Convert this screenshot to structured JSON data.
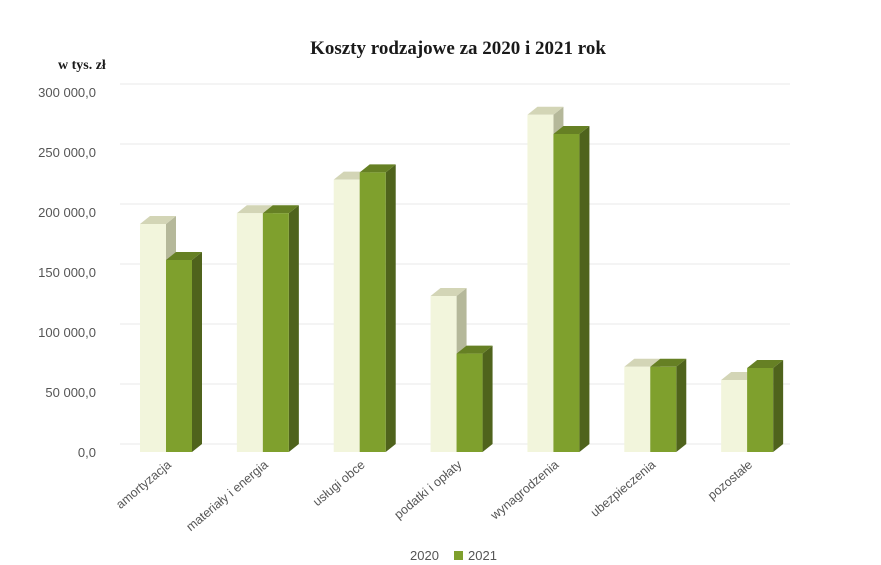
{
  "chart_data": {
    "type": "bar",
    "title": "Koszty rodzajowe za 2020 i 2021 rok",
    "ylabel": "w tys. zł",
    "xlabel": "",
    "categories": [
      "amortyzacja",
      "materiały i energia",
      "usługi obce",
      "podatki i opłaty",
      "wynagrodzenia",
      "ubezpieczenia",
      "pozostałe"
    ],
    "series": [
      {
        "name": "2020",
        "values": [
          190000,
          199000,
          227000,
          130000,
          281000,
          71000,
          60000
        ]
      },
      {
        "name": "2021",
        "values": [
          160000,
          199000,
          233000,
          82000,
          265000,
          71000,
          70000
        ]
      }
    ],
    "ylim": [
      0,
      300000
    ],
    "yticks": [
      0,
      50000,
      100000,
      150000,
      200000,
      250000,
      300000
    ],
    "ytick_labels": [
      "0,0",
      "50 000,0",
      "100 000,0",
      "150 000,0",
      "200 000,0",
      "250 000,0",
      "300 000,0"
    ],
    "colors": {
      "2020": "#f2f5dc",
      "2021": "#7fa02d"
    },
    "grid": true,
    "legend": "bottom",
    "style": "3d-column"
  }
}
